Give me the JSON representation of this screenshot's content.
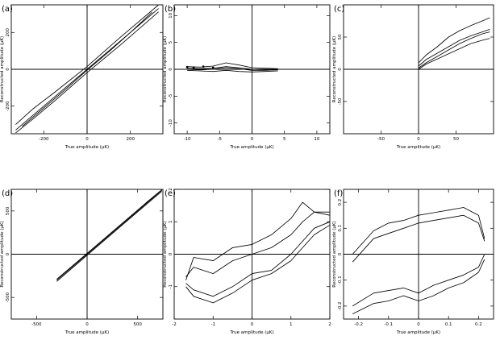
{
  "chart_data": [
    {
      "panel_label": "(a)",
      "type": "line",
      "xlabel": "True amplitude (μK)",
      "ylabel": "Reconstructed amplitude (μK)",
      "xlim": [
        -350,
        350
      ],
      "ylim": [
        -350,
        350
      ],
      "xticks": [
        -200,
        0,
        200
      ],
      "yticks": [
        -200,
        0,
        200
      ],
      "series": [
        {
          "x": [
            -330,
            -250,
            -150,
            0,
            150,
            250,
            330
          ],
          "y": [
            -330,
            -250,
            -150,
            0,
            150,
            250,
            330
          ]
        },
        {
          "x": [
            -330,
            -250,
            -150,
            0,
            150,
            250,
            330
          ],
          "y": [
            -300,
            -215,
            -125,
            15,
            170,
            270,
            350
          ]
        },
        {
          "x": [
            -330,
            -250,
            -150,
            0,
            150,
            250,
            330
          ],
          "y": [
            -345,
            -270,
            -172,
            -18,
            128,
            230,
            312
          ]
        },
        {
          "x": [
            -300,
            -200,
            -100,
            0,
            100,
            200,
            300
          ],
          "y": [
            -310,
            -210,
            -110,
            -5,
            95,
            200,
            310
          ]
        }
      ]
    },
    {
      "panel_label": "(b)",
      "type": "line",
      "xlabel": "True amplitude (μK)",
      "ylabel": "Reconstructed amplitude (μK)",
      "xlim": [
        -12,
        12
      ],
      "ylim": [
        -12,
        12
      ],
      "xticks": [
        -10,
        -5,
        0,
        5,
        10
      ],
      "yticks": [
        -10,
        -5,
        0,
        5,
        10
      ],
      "series": [
        {
          "x": [
            -10,
            -8,
            -6,
            -4,
            -2,
            0,
            2,
            4
          ],
          "y": [
            0.5,
            0.4,
            0.6,
            1.2,
            0.8,
            0.3,
            0.2,
            0.1
          ]
        },
        {
          "x": [
            -10,
            -8,
            -6,
            -4,
            -2,
            0,
            2,
            4
          ],
          "y": [
            0.2,
            0.1,
            0.2,
            0.5,
            0.3,
            0.0,
            -0.1,
            0.0
          ]
        },
        {
          "x": [
            -10,
            -8,
            -6,
            -4,
            -2,
            0,
            2,
            4
          ],
          "y": [
            -0.2,
            -0.3,
            -0.4,
            -0.2,
            -0.4,
            -0.5,
            -0.4,
            -0.3
          ]
        },
        {
          "x": [
            -10,
            -8,
            -6,
            -4,
            -2,
            0,
            2,
            4
          ],
          "y": [
            0.0,
            -0.1,
            0.0,
            0.3,
            0.1,
            -0.2,
            -0.2,
            -0.1
          ]
        }
      ],
      "points": {
        "x": [
          -10,
          -9,
          -7.5,
          -6
        ],
        "y": [
          0.4,
          0.3,
          0.5,
          0.3
        ]
      }
    },
    {
      "panel_label": "(c)",
      "type": "line",
      "xlabel": "True amplitude (μK)",
      "ylabel": "Reconstructed amplitude (μK)",
      "xlim": [
        -100,
        100
      ],
      "ylim": [
        -100,
        100
      ],
      "xticks": [
        -50,
        0,
        50
      ],
      "yticks": [
        -50,
        0,
        50
      ],
      "series": [
        {
          "x": [
            0,
            10,
            25,
            40,
            55,
            70,
            85,
            95
          ],
          "y": [
            10,
            22,
            35,
            50,
            60,
            68,
            75,
            80
          ]
        },
        {
          "x": [
            0,
            10,
            25,
            40,
            55,
            70,
            85,
            95
          ],
          "y": [
            5,
            15,
            25,
            35,
            45,
            52,
            58,
            62
          ]
        },
        {
          "x": [
            0,
            10,
            25,
            40,
            55,
            70,
            85,
            95
          ],
          "y": [
            0,
            8,
            16,
            24,
            32,
            40,
            45,
            48
          ]
        },
        {
          "x": [
            0,
            10,
            25,
            40,
            55,
            70,
            85,
            95
          ],
          "y": [
            2,
            10,
            20,
            30,
            40,
            48,
            55,
            58
          ]
        }
      ]
    },
    {
      "panel_label": "(d)",
      "type": "line",
      "xlabel": "True amplitude (μK)",
      "ylabel": "Reconstructed amplitude (μK)",
      "xlim": [
        -750,
        750
      ],
      "ylim": [
        -750,
        750
      ],
      "xticks": [
        -500,
        0,
        500
      ],
      "yticks": [
        -500,
        0,
        500
      ],
      "series": [
        {
          "x": [
            -300,
            0,
            300,
            600,
            740
          ],
          "y": [
            -300,
            0,
            300,
            600,
            740
          ]
        },
        {
          "x": [
            -300,
            0,
            300,
            600,
            740
          ],
          "y": [
            -315,
            -12,
            290,
            590,
            728
          ]
        },
        {
          "x": [
            -300,
            0,
            300,
            600,
            740
          ],
          "y": [
            -290,
            10,
            310,
            610,
            745
          ]
        }
      ]
    },
    {
      "panel_label": "(e)",
      "type": "line",
      "xlabel": "True amplitude (μK)",
      "ylabel": "Reconstructed amplitude (μK)",
      "xlim": [
        -2,
        2
      ],
      "ylim": [
        -2,
        2
      ],
      "xticks": [
        -2,
        -1,
        0,
        1,
        2
      ],
      "yticks": [
        -1,
        0,
        1,
        2
      ],
      "series": [
        {
          "x": [
            -1.7,
            -1.5,
            -1.0,
            -0.5,
            0.0,
            0.5,
            1.0,
            1.3,
            1.6,
            2.0
          ],
          "y": [
            -0.8,
            -0.1,
            -0.2,
            0.2,
            0.3,
            0.6,
            1.1,
            1.6,
            1.3,
            1.3
          ]
        },
        {
          "x": [
            -1.7,
            -1.5,
            -1.0,
            -0.5,
            0.0,
            0.5,
            1.0,
            1.3,
            1.6,
            2.0
          ],
          "y": [
            -0.7,
            -0.4,
            -0.6,
            -0.2,
            0.0,
            0.2,
            0.6,
            1.0,
            1.3,
            1.2
          ]
        },
        {
          "x": [
            -1.7,
            -1.5,
            -1.0,
            -0.5,
            0.0,
            0.5,
            1.0,
            1.3,
            1.6,
            2.0
          ],
          "y": [
            -1.0,
            -1.3,
            -1.5,
            -1.2,
            -0.8,
            -0.6,
            -0.2,
            0.2,
            0.6,
            0.9
          ]
        },
        {
          "x": [
            -1.7,
            -1.5,
            -1.0,
            -0.5,
            0.0,
            0.5,
            1.0,
            1.3,
            1.6,
            2.0
          ],
          "y": [
            -0.9,
            -1.1,
            -1.3,
            -1.0,
            -0.6,
            -0.5,
            0.0,
            0.4,
            0.8,
            1.0
          ]
        }
      ]
    },
    {
      "panel_label": "(f)",
      "type": "line",
      "xlabel": "True amplitude (μK)",
      "ylabel": "Reconstructed amplitude (μK)",
      "xlim": [
        -0.25,
        0.25
      ],
      "ylim": [
        -0.25,
        0.25
      ],
      "xticks": [
        -0.2,
        -0.1,
        0,
        0.1,
        0.2
      ],
      "yticks": [
        -0.2,
        -0.1,
        0,
        0.1,
        0.2
      ],
      "series": [
        {
          "x": [
            -0.22,
            -0.15,
            -0.1,
            -0.05,
            0.0,
            0.05,
            0.1,
            0.15,
            0.2,
            0.22
          ],
          "y": [
            -0.0,
            0.09,
            0.12,
            0.13,
            0.15,
            0.16,
            0.17,
            0.18,
            0.15,
            0.06
          ]
        },
        {
          "x": [
            -0.22,
            -0.15,
            -0.1,
            -0.05,
            0.0,
            0.05,
            0.1,
            0.15,
            0.2,
            0.22
          ],
          "y": [
            -0.03,
            0.06,
            0.08,
            0.1,
            0.12,
            0.13,
            0.14,
            0.15,
            0.12,
            0.05
          ]
        },
        {
          "x": [
            -0.22,
            -0.15,
            -0.1,
            -0.05,
            0.0,
            0.05,
            0.1,
            0.15,
            0.2,
            0.22
          ],
          "y": [
            -0.2,
            -0.15,
            -0.14,
            -0.13,
            -0.15,
            -0.12,
            -0.1,
            -0.08,
            -0.05,
            0.0
          ]
        },
        {
          "x": [
            -0.22,
            -0.15,
            -0.1,
            -0.05,
            0.0,
            0.05,
            0.1,
            0.15,
            0.2,
            0.22
          ],
          "y": [
            -0.23,
            -0.19,
            -0.18,
            -0.16,
            -0.18,
            -0.16,
            -0.13,
            -0.11,
            -0.07,
            -0.02
          ]
        }
      ]
    }
  ]
}
